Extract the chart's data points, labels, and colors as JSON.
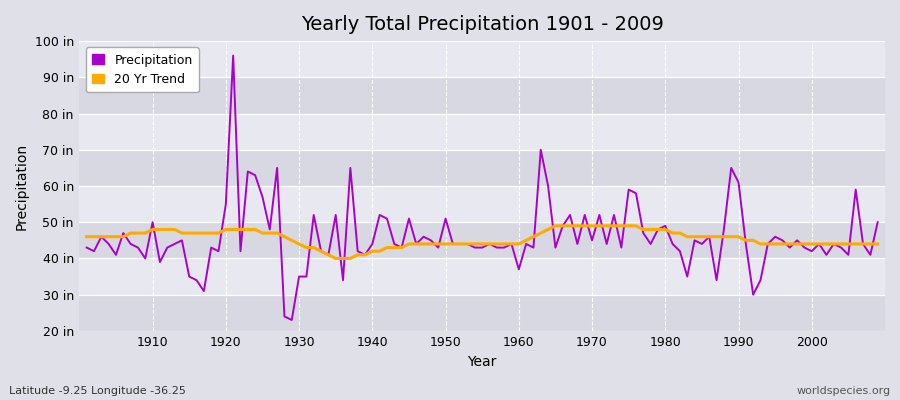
{
  "title": "Yearly Total Precipitation 1901 - 2009",
  "xlabel": "Year",
  "ylabel": "Precipitation",
  "footnote_left": "Latitude -9.25 Longitude -36.25",
  "footnote_right": "worldspecies.org",
  "ylim": [
    20,
    100
  ],
  "yticks": [
    20,
    30,
    40,
    50,
    60,
    70,
    80,
    90,
    100
  ],
  "ytick_labels": [
    "20 in",
    "30 in",
    "40 in",
    "50 in",
    "60 in",
    "70 in",
    "80 in",
    "90 in",
    "100 in"
  ],
  "xticks": [
    1910,
    1920,
    1930,
    1940,
    1950,
    1960,
    1970,
    1980,
    1990,
    2000
  ],
  "fig_bg_color": "#e0e0e8",
  "band_colors": [
    "#d8d8e2",
    "#e8e8f0"
  ],
  "grid_color": "#ffffff",
  "precip_color": "#aa00cc",
  "trend_color": "#ffaa00",
  "precip_linewidth": 1.4,
  "trend_linewidth": 2.2,
  "years": [
    1901,
    1902,
    1903,
    1904,
    1905,
    1906,
    1907,
    1908,
    1909,
    1910,
    1911,
    1912,
    1913,
    1914,
    1915,
    1916,
    1917,
    1918,
    1919,
    1920,
    1921,
    1922,
    1923,
    1924,
    1925,
    1926,
    1927,
    1928,
    1929,
    1930,
    1931,
    1932,
    1933,
    1934,
    1935,
    1936,
    1937,
    1938,
    1939,
    1940,
    1941,
    1942,
    1943,
    1944,
    1945,
    1946,
    1947,
    1948,
    1949,
    1950,
    1951,
    1952,
    1953,
    1954,
    1955,
    1956,
    1957,
    1958,
    1959,
    1960,
    1961,
    1962,
    1963,
    1964,
    1965,
    1966,
    1967,
    1968,
    1969,
    1970,
    1971,
    1972,
    1973,
    1974,
    1975,
    1976,
    1977,
    1978,
    1979,
    1980,
    1981,
    1982,
    1983,
    1984,
    1985,
    1986,
    1987,
    1988,
    1989,
    1990,
    1991,
    1992,
    1993,
    1994,
    1995,
    1996,
    1997,
    1998,
    1999,
    2000,
    2001,
    2002,
    2003,
    2004,
    2005,
    2006,
    2007,
    2008,
    2009
  ],
  "precip": [
    43,
    42,
    46,
    44,
    41,
    47,
    44,
    43,
    40,
    50,
    39,
    43,
    44,
    45,
    35,
    34,
    31,
    43,
    42,
    55,
    96,
    42,
    64,
    63,
    57,
    48,
    65,
    24,
    23,
    35,
    35,
    52,
    42,
    41,
    52,
    34,
    65,
    42,
    41,
    44,
    52,
    51,
    44,
    43,
    51,
    44,
    46,
    45,
    43,
    51,
    44,
    44,
    44,
    43,
    43,
    44,
    43,
    43,
    44,
    37,
    44,
    43,
    70,
    60,
    43,
    49,
    52,
    44,
    52,
    45,
    52,
    44,
    52,
    43,
    59,
    58,
    47,
    44,
    48,
    49,
    44,
    42,
    35,
    45,
    44,
    46,
    34,
    48,
    65,
    61,
    44,
    30,
    34,
    44,
    46,
    45,
    43,
    45,
    43,
    42,
    44,
    41,
    44,
    43,
    41,
    59,
    44,
    41,
    50
  ],
  "trend": [
    46,
    46,
    46,
    46,
    46,
    46,
    47,
    47,
    47,
    48,
    48,
    48,
    48,
    47,
    47,
    47,
    47,
    47,
    47,
    48,
    48,
    48,
    48,
    48,
    47,
    47,
    47,
    46,
    45,
    44,
    43,
    43,
    42,
    41,
    40,
    40,
    40,
    41,
    41,
    42,
    42,
    43,
    43,
    43,
    44,
    44,
    44,
    44,
    44,
    44,
    44,
    44,
    44,
    44,
    44,
    44,
    44,
    44,
    44,
    44,
    45,
    46,
    47,
    48,
    49,
    49,
    49,
    49,
    49,
    49,
    49,
    49,
    49,
    49,
    49,
    49,
    48,
    48,
    48,
    48,
    47,
    47,
    46,
    46,
    46,
    46,
    46,
    46,
    46,
    46,
    45,
    45,
    44,
    44,
    44,
    44,
    44,
    44,
    44,
    44,
    44,
    44,
    44,
    44,
    44,
    44,
    44,
    44,
    44
  ]
}
